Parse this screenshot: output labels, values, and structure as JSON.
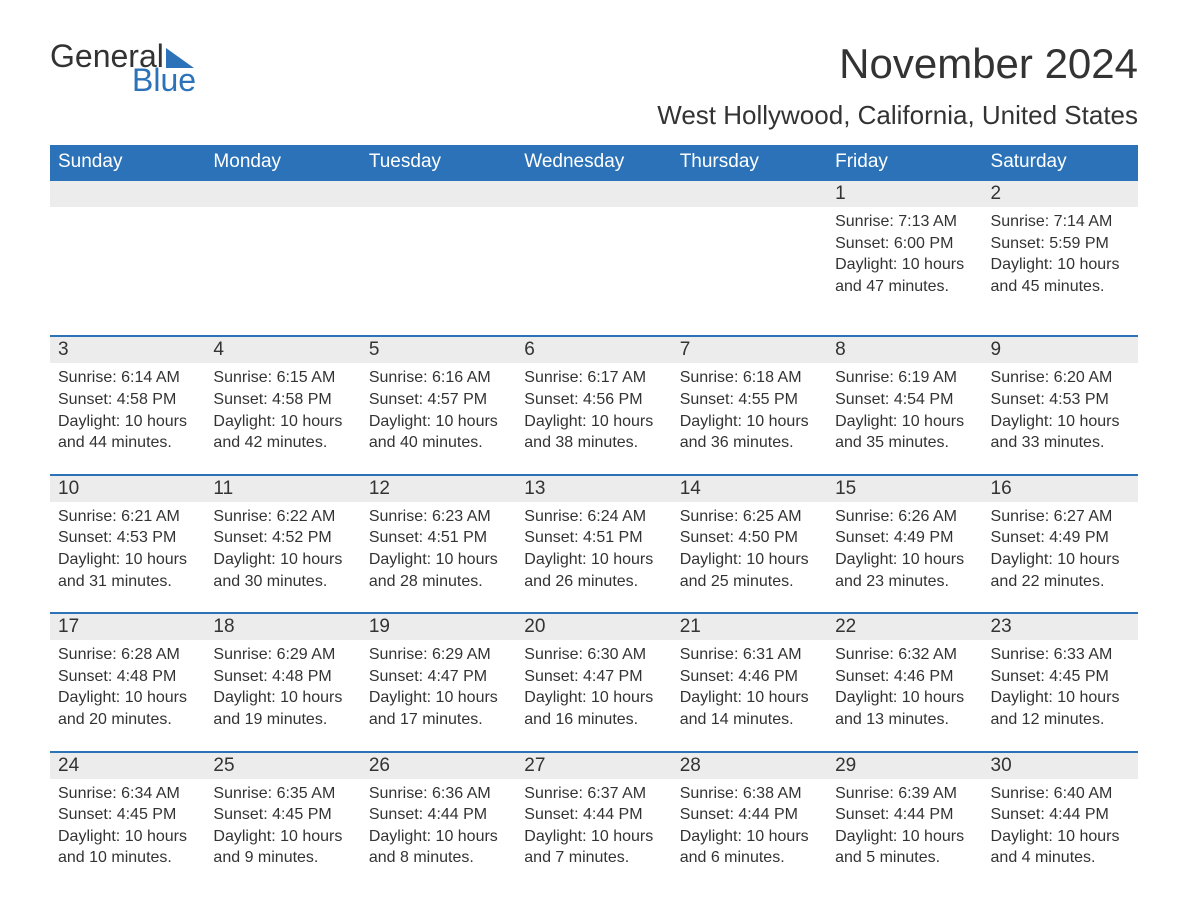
{
  "brand": {
    "general": "General",
    "blue": "Blue"
  },
  "title": "November 2024",
  "subtitle": "West Hollywood, California, United States",
  "colors": {
    "header_bg": "#2b72b9",
    "header_text": "#ffffff",
    "daynum_bg": "#ececec",
    "daynum_border": "#2b72b9",
    "text": "#333333",
    "background": "#ffffff"
  },
  "typography": {
    "title_fontsize": 42,
    "subtitle_fontsize": 26,
    "dayheader_fontsize": 19,
    "daynum_fontsize": 19,
    "body_fontsize": 16
  },
  "day_headers": [
    "Sunday",
    "Monday",
    "Tuesday",
    "Wednesday",
    "Thursday",
    "Friday",
    "Saturday"
  ],
  "weeks": [
    {
      "nums": [
        "",
        "",
        "",
        "",
        "",
        "1",
        "2"
      ],
      "cells": [
        "",
        "",
        "",
        "",
        "",
        "Sunrise: 7:13 AM\nSunset: 6:00 PM\nDaylight: 10 hours and 47 minutes.",
        "Sunrise: 7:14 AM\nSunset: 5:59 PM\nDaylight: 10 hours and 45 minutes."
      ]
    },
    {
      "nums": [
        "3",
        "4",
        "5",
        "6",
        "7",
        "8",
        "9"
      ],
      "cells": [
        "Sunrise: 6:14 AM\nSunset: 4:58 PM\nDaylight: 10 hours and 44 minutes.",
        "Sunrise: 6:15 AM\nSunset: 4:58 PM\nDaylight: 10 hours and 42 minutes.",
        "Sunrise: 6:16 AM\nSunset: 4:57 PM\nDaylight: 10 hours and 40 minutes.",
        "Sunrise: 6:17 AM\nSunset: 4:56 PM\nDaylight: 10 hours and 38 minutes.",
        "Sunrise: 6:18 AM\nSunset: 4:55 PM\nDaylight: 10 hours and 36 minutes.",
        "Sunrise: 6:19 AM\nSunset: 4:54 PM\nDaylight: 10 hours and 35 minutes.",
        "Sunrise: 6:20 AM\nSunset: 4:53 PM\nDaylight: 10 hours and 33 minutes."
      ]
    },
    {
      "nums": [
        "10",
        "11",
        "12",
        "13",
        "14",
        "15",
        "16"
      ],
      "cells": [
        "Sunrise: 6:21 AM\nSunset: 4:53 PM\nDaylight: 10 hours and 31 minutes.",
        "Sunrise: 6:22 AM\nSunset: 4:52 PM\nDaylight: 10 hours and 30 minutes.",
        "Sunrise: 6:23 AM\nSunset: 4:51 PM\nDaylight: 10 hours and 28 minutes.",
        "Sunrise: 6:24 AM\nSunset: 4:51 PM\nDaylight: 10 hours and 26 minutes.",
        "Sunrise: 6:25 AM\nSunset: 4:50 PM\nDaylight: 10 hours and 25 minutes.",
        "Sunrise: 6:26 AM\nSunset: 4:49 PM\nDaylight: 10 hours and 23 minutes.",
        "Sunrise: 6:27 AM\nSunset: 4:49 PM\nDaylight: 10 hours and 22 minutes."
      ]
    },
    {
      "nums": [
        "17",
        "18",
        "19",
        "20",
        "21",
        "22",
        "23"
      ],
      "cells": [
        "Sunrise: 6:28 AM\nSunset: 4:48 PM\nDaylight: 10 hours and 20 minutes.",
        "Sunrise: 6:29 AM\nSunset: 4:48 PM\nDaylight: 10 hours and 19 minutes.",
        "Sunrise: 6:29 AM\nSunset: 4:47 PM\nDaylight: 10 hours and 17 minutes.",
        "Sunrise: 6:30 AM\nSunset: 4:47 PM\nDaylight: 10 hours and 16 minutes.",
        "Sunrise: 6:31 AM\nSunset: 4:46 PM\nDaylight: 10 hours and 14 minutes.",
        "Sunrise: 6:32 AM\nSunset: 4:46 PM\nDaylight: 10 hours and 13 minutes.",
        "Sunrise: 6:33 AM\nSunset: 4:45 PM\nDaylight: 10 hours and 12 minutes."
      ]
    },
    {
      "nums": [
        "24",
        "25",
        "26",
        "27",
        "28",
        "29",
        "30"
      ],
      "cells": [
        "Sunrise: 6:34 AM\nSunset: 4:45 PM\nDaylight: 10 hours and 10 minutes.",
        "Sunrise: 6:35 AM\nSunset: 4:45 PM\nDaylight: 10 hours and 9 minutes.",
        "Sunrise: 6:36 AM\nSunset: 4:44 PM\nDaylight: 10 hours and 8 minutes.",
        "Sunrise: 6:37 AM\nSunset: 4:44 PM\nDaylight: 10 hours and 7 minutes.",
        "Sunrise: 6:38 AM\nSunset: 4:44 PM\nDaylight: 10 hours and 6 minutes.",
        "Sunrise: 6:39 AM\nSunset: 4:44 PM\nDaylight: 10 hours and 5 minutes.",
        "Sunrise: 6:40 AM\nSunset: 4:44 PM\nDaylight: 10 hours and 4 minutes."
      ]
    }
  ]
}
